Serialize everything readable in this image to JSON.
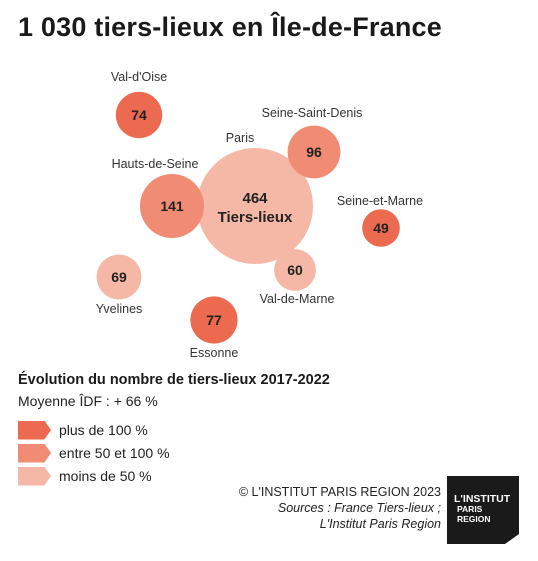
{
  "title": "1 030 tiers-lieux en Île-de-France",
  "chart_data": {
    "type": "bubble",
    "title": "1 030 tiers-lieux en Île-de-France",
    "unit": "Tiers-lieux",
    "points": [
      {
        "name": "Paris",
        "value": 464,
        "category": "moins de 50 %"
      },
      {
        "name": "Hauts-de-Seine",
        "value": 141,
        "category": "entre 50 et 100 %"
      },
      {
        "name": "Seine-Saint-Denis",
        "value": 96,
        "category": "entre 50 et 100 %"
      },
      {
        "name": "Essonne",
        "value": 77,
        "category": "plus de 100 %"
      },
      {
        "name": "Val-d'Oise",
        "value": 74,
        "category": "plus de 100 %"
      },
      {
        "name": "Yvelines",
        "value": 69,
        "category": "moins de 50 %"
      },
      {
        "name": "Val-de-Marne",
        "value": 60,
        "category": "moins de 50 %"
      },
      {
        "name": "Seine-et-Marne",
        "value": 49,
        "category": "plus de 100 %"
      }
    ]
  },
  "legend": {
    "title": "Évolution du nombre de tiers-lieux 2017-2022",
    "subtitle": "Moyenne ÎDF : + 66 %",
    "items": [
      {
        "label": "plus de 100 %",
        "color": "#ec6a4f"
      },
      {
        "label": "entre 50 et 100 %",
        "color": "#f08c73"
      },
      {
        "label": "moins de 50 %",
        "color": "#f6b8a6"
      }
    ]
  },
  "credit": {
    "line1": "© L'INSTITUT PARIS REGION 2023",
    "line2": "Sources : France Tiers-lieux ;",
    "line3": "L'Institut Paris Region"
  },
  "logo": {
    "line1": "L'INSTITUT",
    "line2": "PARIS",
    "line3": "REGION"
  },
  "colors": {
    "title": "#1a1a1a",
    "logo_bg": "#1a1a1a"
  }
}
